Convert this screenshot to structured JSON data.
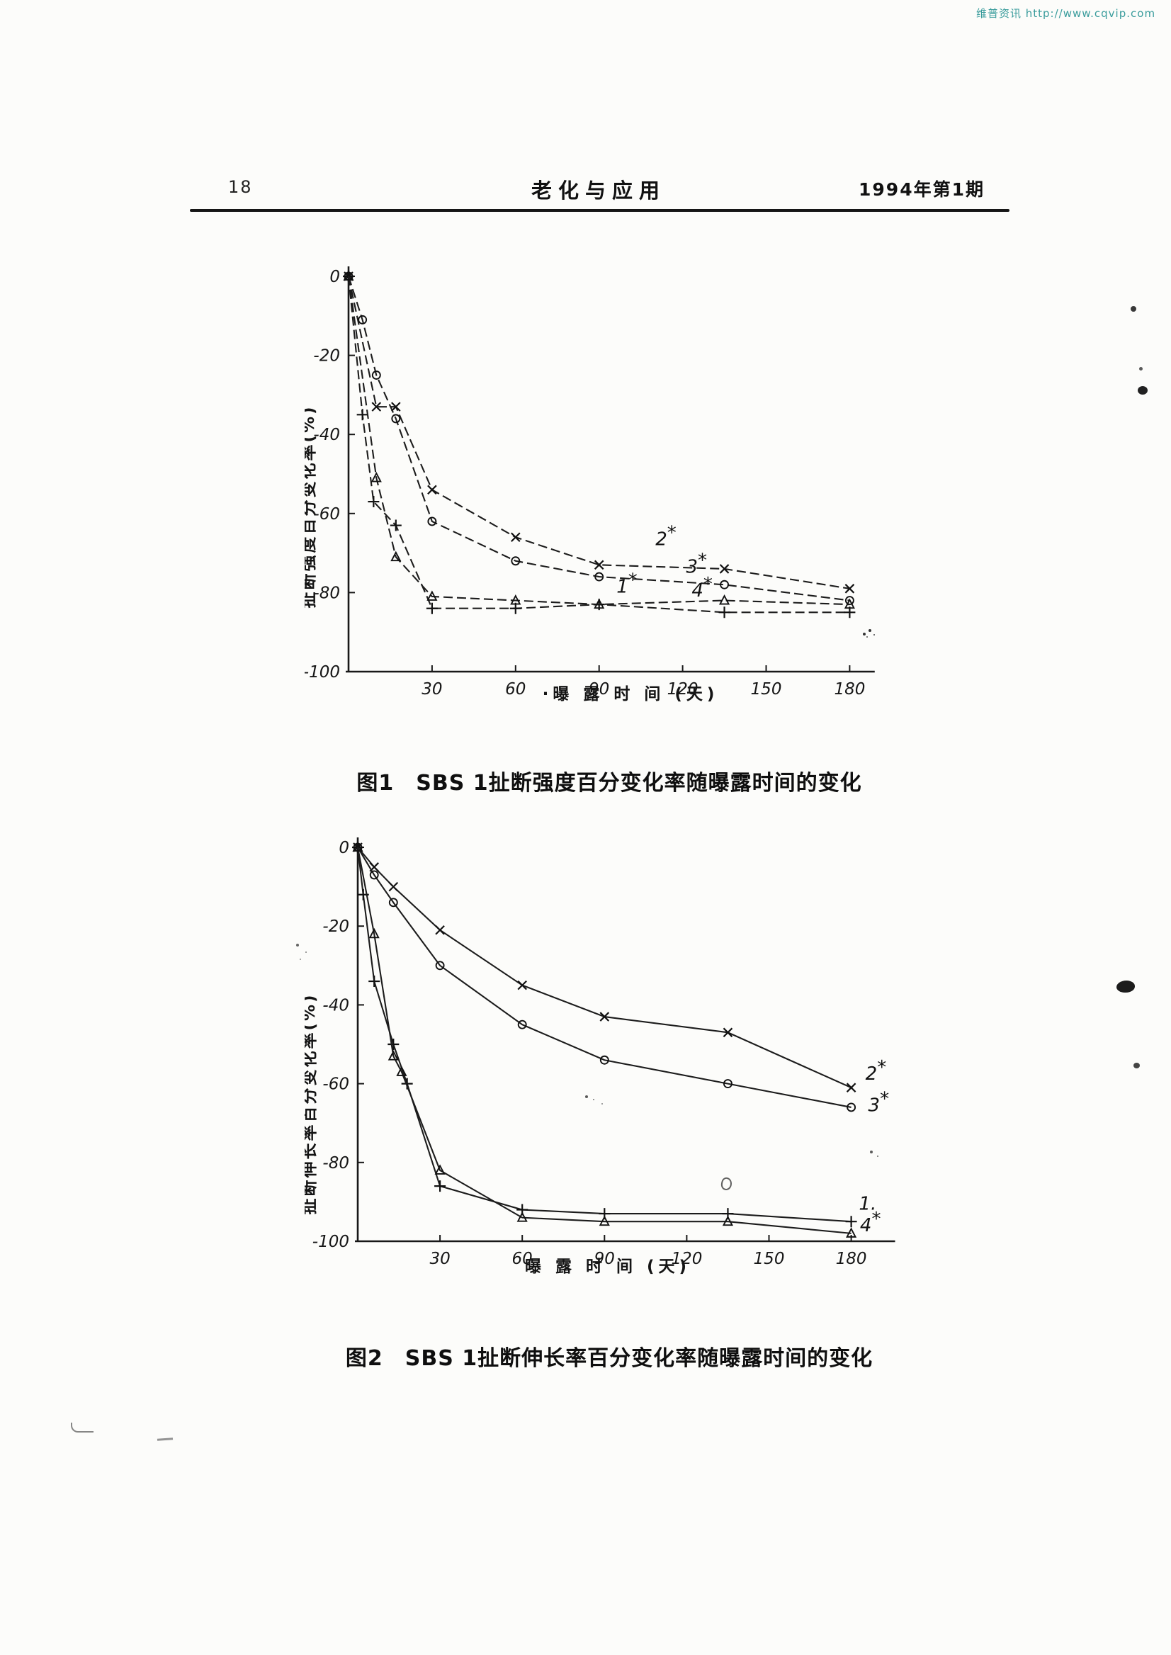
{
  "watermark": {
    "text": "维普资讯 http://www.cqvip.com"
  },
  "header": {
    "page_number": "18",
    "journal_title": "老化与应用",
    "issue": "1994年第1期"
  },
  "colors": {
    "paper": "#fcfcfa",
    "ink": "#1a1a1a",
    "watermark": "#3a9c9c"
  },
  "chart_data": [
    {
      "type": "line",
      "title": "图1　SBS 1扯断强度百分变化率随曝露时间的变化",
      "xlabel": "·曝 露 时 间 (天)",
      "ylabel": "扯断强度百分变化率(%)",
      "xlim": [
        0,
        190
      ],
      "ylim": [
        -100,
        0
      ],
      "xticks": [
        30,
        60,
        90,
        120,
        150,
        180
      ],
      "yticks": [
        0,
        -20,
        -40,
        -60,
        -80,
        -100
      ],
      "grid": false,
      "legend_position": "inline-right-of-curves",
      "series": [
        {
          "name": "1",
          "marker": "plus",
          "label": "1*",
          "label_at": [
            100,
            -80
          ],
          "points": [
            [
              0,
              0
            ],
            [
              5,
              -35
            ],
            [
              9,
              -57
            ],
            [
              17,
              -63
            ],
            [
              30,
              -84
            ],
            [
              60,
              -84
            ],
            [
              90,
              -83
            ],
            [
              135,
              -85
            ],
            [
              180,
              -85
            ]
          ]
        },
        {
          "name": "2",
          "marker": "x",
          "label": "2*",
          "label_at": [
            114,
            -68
          ],
          "points": [
            [
              0,
              0
            ],
            [
              10,
              -33
            ],
            [
              17,
              -33
            ],
            [
              30,
              -54
            ],
            [
              60,
              -66
            ],
            [
              90,
              -73
            ],
            [
              135,
              -74
            ],
            [
              180,
              -79
            ]
          ]
        },
        {
          "name": "3",
          "marker": "circle",
          "label": "3*",
          "label_at": [
            125,
            -75
          ],
          "points": [
            [
              0,
              0
            ],
            [
              5,
              -11
            ],
            [
              10,
              -25
            ],
            [
              17,
              -36
            ],
            [
              30,
              -62
            ],
            [
              60,
              -72
            ],
            [
              90,
              -76
            ],
            [
              135,
              -78
            ],
            [
              180,
              -82
            ]
          ]
        },
        {
          "name": "4",
          "marker": "triangle",
          "label": "4*",
          "label_at": [
            127,
            -81
          ],
          "points": [
            [
              0,
              0
            ],
            [
              10,
              -51
            ],
            [
              17,
              -71
            ],
            [
              30,
              -81
            ],
            [
              60,
              -82
            ],
            [
              90,
              -83
            ],
            [
              135,
              -82
            ],
            [
              180,
              -83
            ]
          ]
        }
      ]
    },
    {
      "type": "line",
      "title": "图2　SBS 1扯断伸长率百分变化率随曝露时间的变化",
      "xlabel": "曝 露 时 间 (天)",
      "ylabel": "扯断伸长率百分变化率(%)",
      "xlim": [
        0,
        196
      ],
      "ylim": [
        -100,
        0
      ],
      "xticks": [
        30,
        60,
        90,
        120,
        150,
        180
      ],
      "yticks": [
        0,
        -20,
        -40,
        -60,
        -80,
        -100
      ],
      "grid": false,
      "legend_position": "inline-right-of-curves",
      "series": [
        {
          "name": "1",
          "marker": "plus",
          "label": "1.",
          "label_at": [
            186,
            -92
          ],
          "points": [
            [
              0,
              0
            ],
            [
              2,
              -12
            ],
            [
              6,
              -34
            ],
            [
              13,
              -50
            ],
            [
              18,
              -60
            ],
            [
              30,
              -86
            ],
            [
              60,
              -92
            ],
            [
              90,
              -93
            ],
            [
              135,
              -93
            ],
            [
              180,
              -95
            ]
          ]
        },
        {
          "name": "2",
          "marker": "x",
          "label": "2*",
          "label_at": [
            189,
            -59
          ],
          "points": [
            [
              0,
              0
            ],
            [
              6,
              -5
            ],
            [
              13,
              -10
            ],
            [
              30,
              -21
            ],
            [
              60,
              -35
            ],
            [
              90,
              -43
            ],
            [
              135,
              -47
            ],
            [
              180,
              -61
            ]
          ]
        },
        {
          "name": "3",
          "marker": "circle",
          "label": "3*",
          "label_at": [
            190,
            -67
          ],
          "points": [
            [
              0,
              0
            ],
            [
              6,
              -7
            ],
            [
              13,
              -14
            ],
            [
              30,
              -30
            ],
            [
              60,
              -45
            ],
            [
              90,
              -54
            ],
            [
              135,
              -60
            ],
            [
              180,
              -66
            ]
          ]
        },
        {
          "name": "4",
          "marker": "triangle",
          "label": "4*",
          "label_at": [
            187,
            -97.5
          ],
          "points": [
            [
              0,
              0
            ],
            [
              6,
              -22
            ],
            [
              13,
              -53
            ],
            [
              16,
              -57
            ],
            [
              30,
              -82
            ],
            [
              60,
              -94
            ],
            [
              90,
              -95
            ],
            [
              135,
              -95
            ],
            [
              180,
              -98
            ]
          ]
        }
      ]
    }
  ]
}
